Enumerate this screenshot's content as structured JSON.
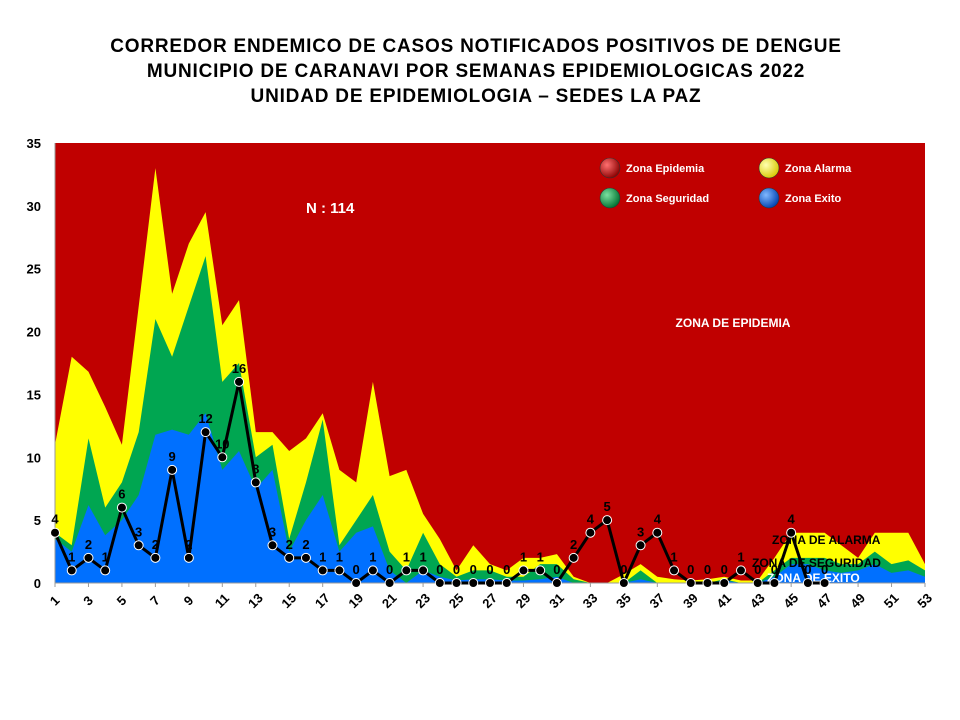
{
  "title": {
    "line1": "CORREDOR ENDEMICO DE CASOS NOTIFICADOS POSITIVOS DE DENGUE",
    "line2": "MUNICIPIO DE CARANAVI POR SEMANAS EPIDEMIOLOGICAS 2022",
    "line3": "UNIDAD DE EPIDEMIOLOGIA – SEDES LA PAZ"
  },
  "colors": {
    "epidemia": "#C00000",
    "alarma": "#FFFF00",
    "seguridad": "#00A651",
    "exito": "#0070FF",
    "cases_line": "#000000"
  },
  "chart_data": {
    "type": "area",
    "ylim": [
      0,
      35
    ],
    "yticks": [
      0,
      5,
      10,
      15,
      20,
      25,
      30,
      35
    ],
    "xlim": [
      1,
      53
    ],
    "xticks": [
      1,
      3,
      5,
      7,
      9,
      11,
      13,
      15,
      17,
      19,
      21,
      23,
      25,
      27,
      29,
      31,
      33,
      35,
      37,
      39,
      41,
      43,
      45,
      47,
      49,
      51,
      53
    ],
    "annotation_total": "N : 114",
    "zone_labels": {
      "epidemia": "ZONA DE EPIDEMIA",
      "alarma": "ZONA DE ALARMA",
      "seguridad": "ZONA DE SEGURIDAD",
      "exito": "ZONA DE  EXITO"
    },
    "legend": [
      {
        "name": "Zona Epidemia",
        "color": "#C00000"
      },
      {
        "name": "Zona Alarma",
        "color": "#FFFF00"
      },
      {
        "name": "Zona Seguridad",
        "color": "#00A651"
      },
      {
        "name": "Zona Exito",
        "color": "#0070FF"
      }
    ],
    "weeks": [
      1,
      2,
      3,
      4,
      5,
      6,
      7,
      8,
      9,
      10,
      11,
      12,
      13,
      14,
      15,
      16,
      17,
      18,
      19,
      20,
      21,
      22,
      23,
      24,
      25,
      26,
      27,
      28,
      29,
      30,
      31,
      32,
      33,
      34,
      35,
      36,
      37,
      38,
      39,
      40,
      41,
      42,
      43,
      44,
      45,
      46,
      47,
      48,
      49,
      50,
      51,
      52,
      53
    ],
    "series": [
      {
        "name": "Zona Exito",
        "values": [
          3.5,
          2.5,
          6.2,
          3.8,
          5,
          7,
          11.8,
          12.2,
          11.8,
          13.5,
          9,
          10.5,
          7.5,
          9,
          2.5,
          5,
          7,
          2.5,
          4,
          4.5,
          1,
          0,
          1,
          0.5,
          0.2,
          0.3,
          0.3,
          0.2,
          0.2,
          0.3,
          0.5,
          0,
          0,
          0,
          0,
          0.3,
          0,
          0,
          0,
          0,
          0.2,
          0,
          0,
          0.5,
          1.5,
          1.5,
          1,
          0.8,
          1,
          1.5,
          0.8,
          1,
          0.5
        ]
      },
      {
        "name": "Zona Seguridad",
        "values": [
          4,
          3,
          11.5,
          6,
          8,
          12,
          21,
          18,
          22,
          26,
          16,
          17.5,
          10,
          11,
          3.5,
          8,
          13,
          3,
          5,
          7,
          2.5,
          1,
          4,
          1.5,
          0.5,
          1,
          1,
          0.5,
          0.5,
          1.5,
          1.5,
          0.3,
          0,
          0,
          0,
          1,
          0,
          0,
          0,
          0,
          0.3,
          0,
          0,
          1,
          2,
          2,
          2,
          1.5,
          1.5,
          2.5,
          1.5,
          1.8,
          1
        ]
      },
      {
        "name": "Zona Alarma",
        "values": [
          11,
          18,
          16.8,
          14,
          11,
          22,
          33,
          23,
          27,
          29.5,
          20.5,
          22.5,
          12,
          12,
          10.5,
          11.5,
          13.5,
          9,
          8,
          16,
          8.5,
          9,
          5.5,
          3.5,
          1,
          3,
          1.5,
          1,
          2,
          2,
          2.3,
          0.5,
          0,
          0,
          0.7,
          1.5,
          0.5,
          0.3,
          0.2,
          0.3,
          0.5,
          0.2,
          0.2,
          2,
          4,
          4,
          4,
          3,
          2,
          4,
          4,
          4,
          1.5
        ]
      }
    ],
    "cases": {
      "name": "Casos",
      "weeks": [
        1,
        2,
        3,
        4,
        5,
        6,
        7,
        8,
        9,
        10,
        11,
        12,
        13,
        14,
        15,
        16,
        17,
        18,
        19,
        20,
        21,
        22,
        23,
        24,
        25,
        26,
        27,
        28,
        29,
        30,
        31,
        32,
        33,
        34,
        35,
        36,
        37,
        38,
        39,
        40,
        41,
        42,
        43,
        44,
        45,
        46,
        47
      ],
      "values": [
        4,
        1,
        2,
        1,
        6,
        3,
        2,
        9,
        2,
        12,
        10,
        16,
        8,
        3,
        2,
        2,
        1,
        1,
        0,
        1,
        0,
        1,
        1,
        0,
        0,
        0,
        0,
        0,
        1,
        1,
        0,
        2,
        4,
        5,
        0,
        3,
        4,
        1,
        0,
        0,
        0,
        1,
        0,
        0,
        4,
        0,
        0
      ]
    }
  }
}
